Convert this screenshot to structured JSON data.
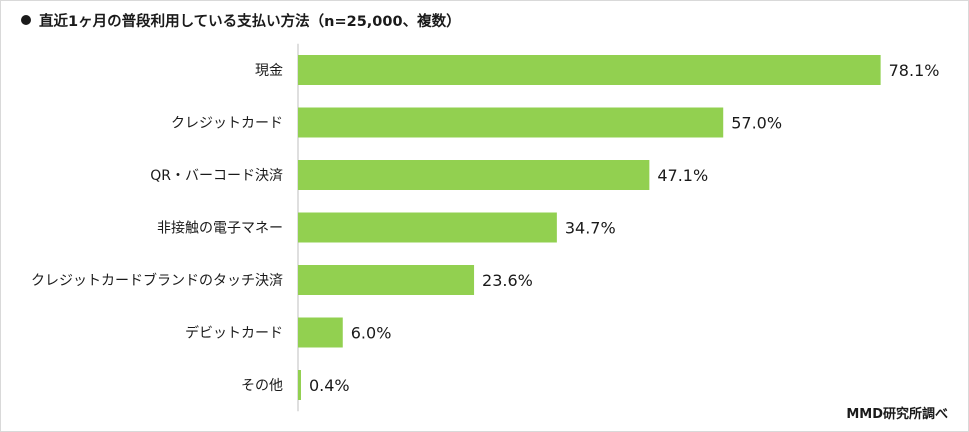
{
  "title": "直近1ヶ月の普段利用している支払い方法（n=25,000、複数）",
  "source": "MMD研究所調べ",
  "chart_data": {
    "type": "bar",
    "orientation": "horizontal",
    "categories": [
      "現金",
      "クレジットカード",
      "QR・バーコード決済",
      "非接触の電子マネー",
      "クレジットカードブランドのタッチ決済",
      "デビットカード",
      "その他"
    ],
    "values": [
      78.1,
      57.0,
      47.1,
      34.7,
      23.6,
      6.0,
      0.4
    ],
    "value_labels": [
      "78.1%",
      "57.0%",
      "47.1%",
      "34.7%",
      "23.6%",
      "6.0%",
      "0.4%"
    ],
    "unit": "%",
    "xlim": [
      0,
      100
    ],
    "bar_color": "#92d050",
    "axis_color": "#bfbfbf",
    "grid": false,
    "legend": "none"
  }
}
